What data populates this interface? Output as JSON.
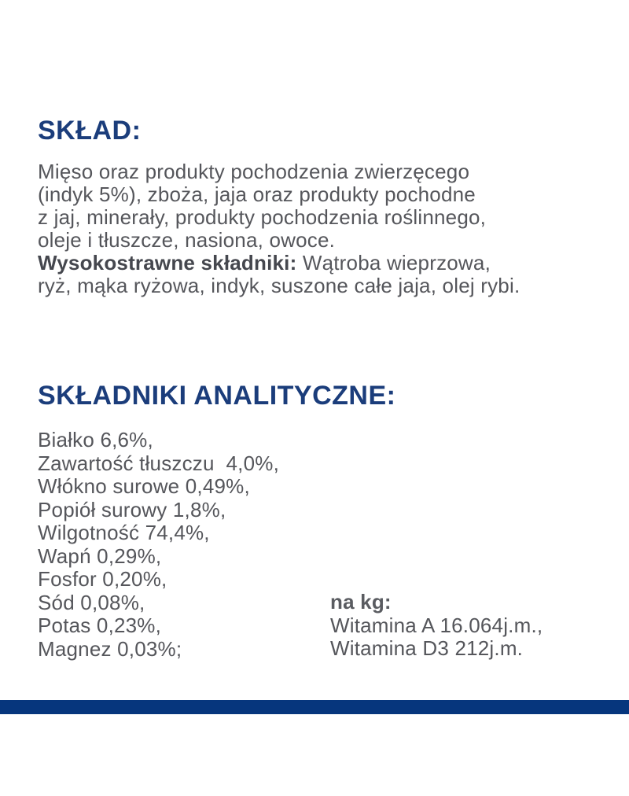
{
  "colors": {
    "heading_navy": "#1B3D7B",
    "bar_navy": "#06367D",
    "body_gray": "#55565B",
    "background": "#ffffff"
  },
  "composition": {
    "heading": "SKŁAD:",
    "lines": [
      {
        "text": "Mięso oraz produkty pochodzenia zwierzęcego"
      },
      {
        "text": "(indyk 5%), zboża, jaja oraz produkty pochodne"
      },
      {
        "text": "z jaj, minerały, produkty pochodzenia roślinnego,"
      },
      {
        "text": "oleje i tłuszcze, nasiona, owoce."
      },
      {
        "bold": "Wysokostrawne składniki:",
        "text": " Wątroba wieprzowa,"
      },
      {
        "text": "ryż, mąka ryżowa, indyk, suszone całe jaja, olej rybi."
      }
    ]
  },
  "analytical": {
    "heading": "SKŁADNIKI ANALITYCZNE:",
    "items": [
      "Białko 6,6%,",
      "Zawartość tłuszczu  4,0%,",
      "Włókno surowe 0,49%,",
      "Popiół surowy 1,8%,",
      "Wilgotność 74,4%,",
      "Wapń 0,29%,",
      "Fosfor 0,20%,",
      "Sód 0,08%,",
      "Potas 0,23%,",
      "Magnez 0,03%;"
    ],
    "per_kg": {
      "heading": "na kg:",
      "items": [
        "Witamina A 16.064j.m.,",
        "Witamina D3 212j.m."
      ]
    }
  }
}
